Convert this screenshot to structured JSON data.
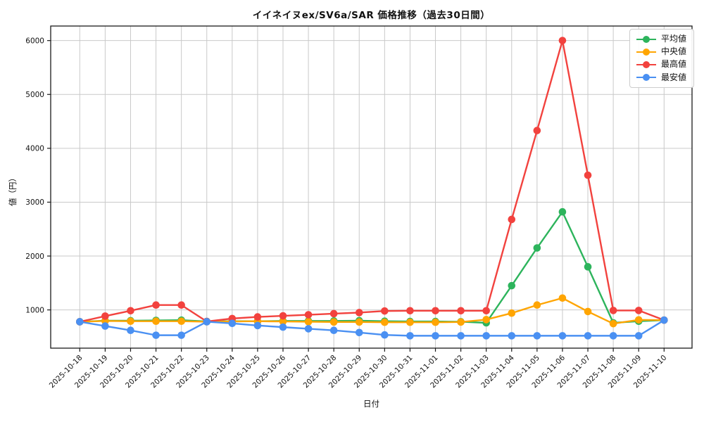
{
  "title": "イイネイヌex/SV6a/SAR 価格推移（過去30日間）",
  "chart_data": {
    "type": "line",
    "title": "イイネイヌex/SV6a/SAR 価格推移（過去30日間）",
    "xlabel": "日付",
    "ylabel": "値（円）",
    "grid": true,
    "legend_position": "upper right",
    "yticks": [
      1000,
      2000,
      3000,
      4000,
      5000,
      6000
    ],
    "ylim": [
      290,
      6270
    ],
    "x": [
      "2025-10-18",
      "2025-10-19",
      "2025-10-20",
      "2025-10-21",
      "2025-10-22",
      "2025-10-23",
      "2025-10-24",
      "2025-10-25",
      "2025-10-26",
      "2025-10-27",
      "2025-10-28",
      "2025-10-29",
      "2025-10-30",
      "2025-10-31",
      "2025-11-01",
      "2025-11-02",
      "2025-11-03",
      "2025-11-04",
      "2025-11-05",
      "2025-11-06",
      "2025-11-07",
      "2025-11-08",
      "2025-11-09",
      "2025-11-10"
    ],
    "series": [
      {
        "name": "平均値",
        "color": "#2db45c",
        "values": [
          780,
          800,
          800,
          805,
          810,
          785,
          790,
          790,
          795,
          795,
          795,
          800,
          790,
          785,
          785,
          780,
          760,
          1450,
          2150,
          2820,
          1800,
          760,
          790,
          810
        ]
      },
      {
        "name": "中央値",
        "color": "#ffa502",
        "values": [
          780,
          795,
          790,
          790,
          790,
          780,
          785,
          790,
          785,
          780,
          775,
          775,
          770,
          770,
          770,
          775,
          820,
          940,
          1090,
          1220,
          970,
          745,
          815,
          810
        ]
      },
      {
        "name": "最高値",
        "color": "#f2423e",
        "values": [
          780,
          885,
          985,
          1090,
          1090,
          785,
          840,
          870,
          890,
          910,
          930,
          950,
          980,
          985,
          985,
          985,
          985,
          2680,
          4330,
          6000,
          3500,
          990,
          990,
          810
        ]
      },
      {
        "name": "最安値",
        "color": "#4a90f2",
        "values": [
          780,
          700,
          620,
          530,
          530,
          780,
          750,
          710,
          680,
          650,
          620,
          580,
          535,
          520,
          520,
          520,
          520,
          520,
          520,
          520,
          520,
          520,
          520,
          810
        ]
      }
    ]
  }
}
